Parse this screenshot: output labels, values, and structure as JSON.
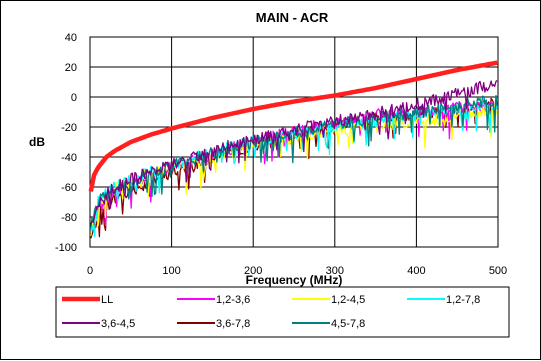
{
  "chart_data": {
    "type": "line",
    "title": "MAIN - ACR",
    "xlabel": "Frequency (MHz)",
    "ylabel": "dB",
    "xlim": [
      0,
      500
    ],
    "ylim": [
      -100,
      40
    ],
    "xticks": [
      0,
      100,
      200,
      300,
      400,
      500
    ],
    "yticks": [
      -100,
      -80,
      -60,
      -40,
      -20,
      0,
      20,
      40
    ],
    "grid": true,
    "legend_position": "bottom",
    "series": [
      {
        "name": "LL",
        "color": "#ff1f1f",
        "x": [
          1,
          5,
          10,
          20,
          30,
          50,
          75,
          100,
          150,
          200,
          250,
          300,
          350,
          400,
          450,
          500
        ],
        "y": [
          -63,
          -52,
          -47,
          -40,
          -36,
          -30,
          -25,
          -21,
          -14,
          -8,
          -3,
          1,
          6,
          12,
          18,
          23
        ]
      },
      {
        "name": "1,2-3,6",
        "color": "#ff00ff",
        "x": [
          1,
          10,
          25,
          50,
          75,
          100,
          150,
          200,
          250,
          300,
          350,
          400,
          450,
          500
        ],
        "y": [
          -92,
          -75,
          -66,
          -58,
          -53,
          -47,
          -38,
          -30,
          -22,
          -17,
          -12,
          -10,
          -7,
          -4
        ]
      },
      {
        "name": "1,2-4,5",
        "color": "#ffff00",
        "x": [
          1,
          10,
          25,
          50,
          75,
          100,
          150,
          200,
          250,
          300,
          350,
          400,
          450,
          500
        ],
        "y": [
          -90,
          -73,
          -64,
          -55,
          -52,
          -47,
          -40,
          -32,
          -27,
          -22,
          -18,
          -16,
          -14,
          -8
        ]
      },
      {
        "name": "1,2-7,8",
        "color": "#00ffff",
        "x": [
          1,
          10,
          25,
          50,
          75,
          100,
          150,
          200,
          250,
          300,
          350,
          400,
          450,
          500
        ],
        "y": [
          -88,
          -70,
          -62,
          -55,
          -50,
          -45,
          -37,
          -30,
          -24,
          -19,
          -16,
          -12,
          -9,
          -6
        ]
      },
      {
        "name": "3,6-4,5",
        "color": "#800080",
        "x": [
          1,
          10,
          25,
          50,
          75,
          100,
          150,
          200,
          250,
          300,
          350,
          400,
          450,
          500
        ],
        "y": [
          -85,
          -70,
          -62,
          -55,
          -50,
          -45,
          -36,
          -28,
          -22,
          -16,
          -11,
          -5,
          2,
          10
        ]
      },
      {
        "name": "3,6-7,8",
        "color": "#800000",
        "x": [
          1,
          10,
          25,
          50,
          75,
          100,
          150,
          200,
          250,
          300,
          350,
          400,
          450,
          500
        ],
        "y": [
          -95,
          -78,
          -70,
          -62,
          -57,
          -50,
          -40,
          -32,
          -25,
          -19,
          -14,
          -11,
          -8,
          -3
        ]
      },
      {
        "name": "4,5-7,8",
        "color": "#008080",
        "x": [
          1,
          10,
          25,
          50,
          75,
          100,
          150,
          200,
          250,
          300,
          350,
          400,
          450,
          500
        ],
        "y": [
          -86,
          -70,
          -63,
          -56,
          -51,
          -46,
          -37,
          -30,
          -24,
          -18,
          -14,
          -10,
          -6,
          -2
        ]
      }
    ]
  }
}
